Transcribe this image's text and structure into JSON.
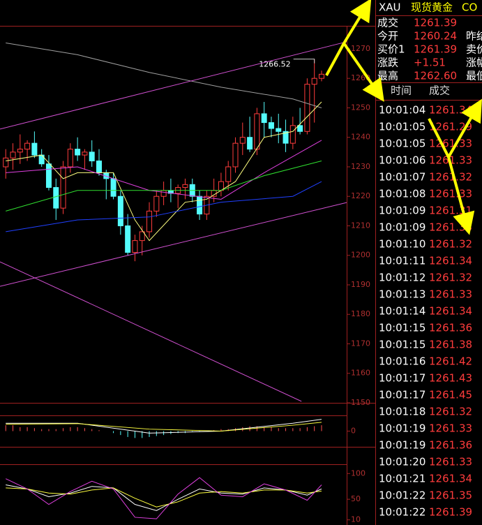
{
  "chart_data": [
    {
      "type": "candlestick",
      "ylim": [
        1150,
        1277.8
      ],
      "xlim": [
        -0.8,
        47.5
      ],
      "yticks": [
        1150,
        1160,
        1170,
        1180,
        1190,
        1200,
        1210,
        1220,
        1230,
        1240,
        1250,
        1260,
        1270
      ],
      "up_color": "#ff3c3c",
      "down_color": "#54fcfc",
      "open": [
        1230,
        1233,
        1235,
        1236,
        1238,
        1234,
        1231,
        1223,
        1216,
        1230,
        1236,
        1234,
        1235,
        1232,
        1228,
        1226,
        1220,
        1210,
        1201,
        1205,
        1208,
        1215,
        1220,
        1222,
        1221,
        1223,
        1224,
        1220,
        1214,
        1220,
        1222,
        1225,
        1230,
        1238,
        1240,
        1236,
        1248,
        1245,
        1243,
        1242,
        1238,
        1244,
        1242,
        1258,
        1260
      ],
      "high": [
        1236,
        1238,
        1241,
        1239,
        1242,
        1236,
        1234,
        1226,
        1232,
        1238,
        1240,
        1236,
        1239,
        1236,
        1229,
        1228,
        1222,
        1214,
        1207,
        1210,
        1218,
        1222,
        1225,
        1226,
        1224,
        1226,
        1226,
        1222,
        1222,
        1226,
        1228,
        1232,
        1240,
        1245,
        1247,
        1250,
        1252,
        1247,
        1248,
        1246,
        1247,
        1250,
        1260,
        1266.52,
        1262.6
      ],
      "low": [
        1226,
        1229,
        1231,
        1232,
        1233,
        1230,
        1222,
        1212,
        1214,
        1228,
        1232,
        1229,
        1230,
        1227,
        1219,
        1219,
        1207,
        1200,
        1198,
        1200,
        1206,
        1213,
        1217,
        1218,
        1216,
        1219,
        1218,
        1212,
        1212,
        1218,
        1220,
        1222,
        1228,
        1234,
        1235,
        1234,
        1240,
        1240,
        1238,
        1235,
        1236,
        1241,
        1241,
        1245,
        1259
      ],
      "close": [
        1233,
        1235,
        1236,
        1238,
        1234,
        1231,
        1223,
        1216,
        1230,
        1236,
        1234,
        1235,
        1232,
        1228,
        1226,
        1220,
        1210,
        1201,
        1205,
        1208,
        1215,
        1220,
        1222,
        1221,
        1223,
        1224,
        1220,
        1214,
        1220,
        1222,
        1225,
        1230,
        1238,
        1240,
        1236,
        1248,
        1245,
        1243,
        1242,
        1238,
        1244,
        1242,
        1258,
        1260,
        1261.39
      ],
      "high_label": "1266.52",
      "high_index": 43,
      "series": [
        {
          "color": "#a0a0a0",
          "x": [
            0,
            10,
            20,
            30,
            40,
            44
          ],
          "values": [
            1272,
            1268,
            1262,
            1257,
            1253,
            1250
          ]
        },
        {
          "color": "#ffff80",
          "x": [
            0,
            5,
            8,
            10,
            15,
            18,
            20,
            25,
            28,
            32,
            36,
            40,
            44
          ],
          "values": [
            1232,
            1234,
            1226,
            1228,
            1228,
            1212,
            1205,
            1218,
            1219,
            1225,
            1240,
            1242,
            1252
          ]
        },
        {
          "color": "#e040e0",
          "x": [
            0,
            10,
            20,
            30,
            36,
            44
          ],
          "values": [
            1228,
            1230,
            1222,
            1219,
            1228,
            1239
          ]
        },
        {
          "color": "#30e030",
          "x": [
            0,
            10,
            20,
            30,
            36,
            44
          ],
          "values": [
            1215,
            1222,
            1222,
            1222,
            1227,
            1232
          ]
        },
        {
          "color": "#2040ff",
          "x": [
            0,
            10,
            20,
            30,
            40,
            44
          ],
          "values": [
            1208,
            1212,
            1213,
            1218,
            1220,
            1225
          ]
        },
        {
          "color": "#d050d0",
          "x": [
            -0.8,
            47.5
          ],
          "values": [
            1242.8,
            1272.4
          ]
        },
        {
          "color": "#d050d0",
          "x": [
            -0.8,
            47.5
          ],
          "values": [
            1189.5,
            1217.9
          ]
        },
        {
          "color": "#d050d0",
          "x": [
            -0.8,
            41.2
          ],
          "values": [
            1197.8,
            1150.5
          ]
        }
      ]
    },
    {
      "type": "macd",
      "ylim": [
        -8,
        8
      ],
      "xlim": [
        -0.8,
        47.5
      ],
      "yticks": [
        0
      ],
      "up_color": "#ff5050",
      "down_color": "#54fcfc",
      "values": [
        3,
        3,
        2,
        2,
        1.5,
        1,
        1,
        1,
        1.5,
        2,
        2,
        1.5,
        1,
        0.5,
        0,
        -1,
        -2,
        -3,
        -3.5,
        -3.5,
        -3,
        -2.5,
        -2,
        -1.5,
        -1,
        -1,
        -0.5,
        -0.5,
        0,
        0.5,
        1,
        1,
        1.5,
        2,
        2.5,
        2.5,
        2,
        2,
        1.5,
        1.5,
        1.5,
        1.5,
        2,
        2.5,
        3
      ],
      "series": [
        {
          "color": "#ffffff",
          "x": [
            0,
            10,
            20,
            30,
            40,
            44
          ],
          "values": [
            4,
            4,
            -1,
            0,
            4,
            6
          ]
        },
        {
          "color": "#ffff40",
          "x": [
            0,
            10,
            20,
            30,
            40,
            44
          ],
          "values": [
            3.5,
            3.8,
            1,
            0,
            3,
            4.5
          ]
        }
      ]
    },
    {
      "type": "kdj",
      "ylim": [
        0,
        118
      ],
      "xlim": [
        -0.8,
        47.5
      ],
      "yticks": [
        10,
        50,
        100
      ],
      "series": [
        {
          "color": "#ffffff",
          "x": [
            0,
            3,
            6,
            9,
            12,
            15,
            18,
            21,
            24,
            27,
            30,
            33,
            36,
            39,
            42,
            44
          ],
          "values": [
            78,
            70,
            55,
            62,
            75,
            72,
            40,
            28,
            50,
            70,
            62,
            60,
            72,
            68,
            58,
            70
          ]
        },
        {
          "color": "#ffff40",
          "x": [
            0,
            3,
            6,
            9,
            12,
            15,
            18,
            21,
            24,
            27,
            30,
            33,
            36,
            39,
            42,
            44
          ],
          "values": [
            72,
            70,
            62,
            60,
            68,
            72,
            52,
            35,
            45,
            62,
            65,
            62,
            68,
            68,
            62,
            66
          ]
        },
        {
          "color": "#e040e0",
          "x": [
            0,
            3,
            6,
            9,
            12,
            15,
            18,
            21,
            24,
            27,
            30,
            33,
            36,
            39,
            42,
            44
          ],
          "values": [
            90,
            70,
            40,
            65,
            85,
            70,
            15,
            12,
            60,
            92,
            58,
            55,
            80,
            68,
            48,
            78
          ]
        }
      ]
    }
  ],
  "quote": {
    "symbol": "XAU",
    "name": "现货黄金",
    "code": "CO",
    "rows": [
      {
        "label": "成交",
        "value": "1261.39"
      },
      {
        "label": "今开",
        "value": "1260.24",
        "label2": "昨结"
      },
      {
        "label": "买价1",
        "value": "1261.39",
        "label2": "卖价"
      },
      {
        "label": "涨跌",
        "value": "+1.51",
        "label2": "涨幅"
      },
      {
        "label": "最高",
        "value": "1262.60",
        "label2": "最低"
      }
    ]
  },
  "trades": {
    "header": [
      "时间",
      "成交"
    ],
    "rows": [
      [
        "10:01:04",
        "1261.34"
      ],
      [
        "10:01:05",
        "1261.29"
      ],
      [
        "10:01:05",
        "1261.33"
      ],
      [
        "10:01:06",
        "1261.33"
      ],
      [
        "10:01:07",
        "1261.32"
      ],
      [
        "10:01:08",
        "1261.33"
      ],
      [
        "10:01:09",
        "1261.31"
      ],
      [
        "10:01:09",
        "1261.33"
      ],
      [
        "10:01:10",
        "1261.32"
      ],
      [
        "10:01:11",
        "1261.34"
      ],
      [
        "10:01:12",
        "1261.32"
      ],
      [
        "10:01:13",
        "1261.33"
      ],
      [
        "10:01:14",
        "1261.34"
      ],
      [
        "10:01:15",
        "1261.36"
      ],
      [
        "10:01:15",
        "1261.38"
      ],
      [
        "10:01:16",
        "1261.42"
      ],
      [
        "10:01:17",
        "1261.43"
      ],
      [
        "10:01:17",
        "1261.45"
      ],
      [
        "10:01:18",
        "1261.32"
      ],
      [
        "10:01:19",
        "1261.33"
      ],
      [
        "10:01:19",
        "1261.36"
      ],
      [
        "10:01:20",
        "1261.33"
      ],
      [
        "10:01:21",
        "1261.34"
      ],
      [
        "10:01:22",
        "1261.35"
      ],
      [
        "10:01:22",
        "1261.39"
      ]
    ]
  }
}
